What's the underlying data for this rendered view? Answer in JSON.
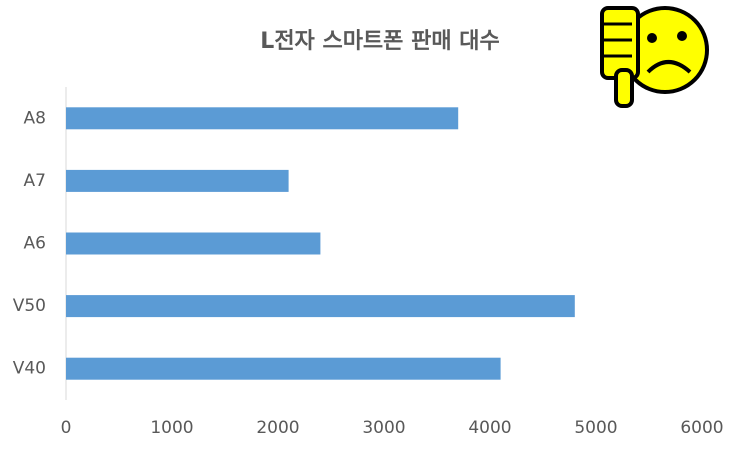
{
  "chart_data": {
    "type": "bar",
    "orientation": "horizontal",
    "title": "L전자 스마트폰 판매 대수",
    "categories": [
      "A8",
      "A7",
      "A6",
      "V50",
      "V40"
    ],
    "values": [
      3700,
      2100,
      2400,
      4800,
      4100
    ],
    "color": "#5b9bd5",
    "xlim": [
      0,
      6000
    ],
    "xticks": [
      0,
      1000,
      2000,
      3000,
      4000,
      5000,
      6000
    ],
    "grid": false
  }
}
